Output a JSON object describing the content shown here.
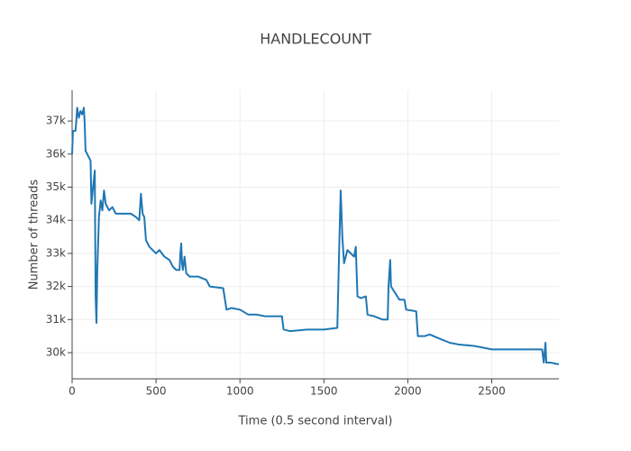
{
  "chart_data": {
    "type": "line",
    "title": "HANDLECOUNT",
    "x_label": "Time (0.5 second interval)",
    "y_label": "Number of threads",
    "color": "#1f77b4",
    "grid": true,
    "xlim": [
      0,
      2900
    ],
    "ylim": [
      29210,
      37930
    ],
    "xticks": [
      0,
      500,
      1000,
      1500,
      2000,
      2500
    ],
    "yticks": [
      {
        "value": 30000,
        "label": "30k"
      },
      {
        "value": 31000,
        "label": "31k"
      },
      {
        "value": 32000,
        "label": "32k"
      },
      {
        "value": 33000,
        "label": "33k"
      },
      {
        "value": 34000,
        "label": "34k"
      },
      {
        "value": 35000,
        "label": "35k"
      },
      {
        "value": 36000,
        "label": "36k"
      },
      {
        "value": 37000,
        "label": "37k"
      }
    ],
    "x": [
      0,
      5,
      20,
      25,
      30,
      40,
      50,
      60,
      70,
      75,
      80,
      100,
      110,
      115,
      125,
      135,
      140,
      145,
      150,
      160,
      170,
      180,
      190,
      200,
      220,
      240,
      260,
      300,
      350,
      380,
      400,
      410,
      420,
      430,
      440,
      460,
      500,
      520,
      550,
      580,
      600,
      620,
      640,
      645,
      650,
      655,
      660,
      670,
      680,
      700,
      750,
      800,
      820,
      900,
      920,
      950,
      1000,
      1050,
      1100,
      1150,
      1250,
      1260,
      1300,
      1400,
      1500,
      1580,
      1590,
      1600,
      1610,
      1620,
      1640,
      1680,
      1690,
      1700,
      1720,
      1750,
      1760,
      1800,
      1850,
      1880,
      1885,
      1895,
      1900,
      1950,
      1980,
      1990,
      2050,
      2060,
      2100,
      2130,
      2200,
      2250,
      2300,
      2400,
      2450,
      2500,
      2700,
      2800,
      2810,
      2820,
      2825,
      2850,
      2900
    ],
    "values": [
      36000,
      36700,
      36700,
      37000,
      37400,
      37100,
      37300,
      37200,
      37400,
      36900,
      36100,
      35900,
      35800,
      34500,
      35000,
      35500,
      31700,
      30900,
      32500,
      34100,
      34600,
      34300,
      34900,
      34500,
      34300,
      34400,
      34200,
      34200,
      34200,
      34100,
      34000,
      34800,
      34200,
      34100,
      33400,
      33200,
      33000,
      33100,
      32900,
      32800,
      32600,
      32500,
      32500,
      33000,
      33300,
      32700,
      32500,
      32900,
      32400,
      32300,
      32300,
      32200,
      32000,
      31950,
      31300,
      31350,
      31300,
      31150,
      31150,
      31100,
      31100,
      30700,
      30650,
      30700,
      30700,
      30750,
      32900,
      34900,
      33500,
      32700,
      33100,
      32900,
      33200,
      31700,
      31650,
      31700,
      31150,
      31100,
      31000,
      31000,
      32000,
      32800,
      32000,
      31600,
      31600,
      31300,
      31250,
      30500,
      30500,
      30550,
      30400,
      30300,
      30250,
      30200,
      30150,
      30100,
      30100,
      30100,
      29700,
      30300,
      29700,
      29700,
      29650
    ]
  }
}
